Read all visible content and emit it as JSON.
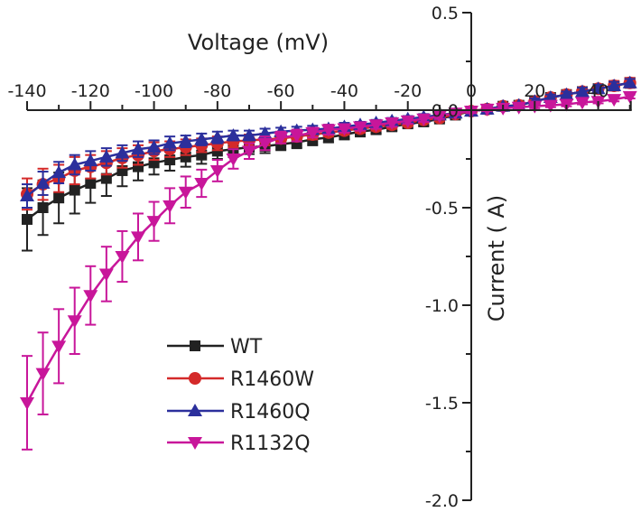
{
  "chart_data": {
    "type": "line",
    "title": "",
    "xlabel": "Voltage (mV)",
    "ylabel": "Current ( A)",
    "xlim": [
      -140,
      50
    ],
    "ylim": [
      -2.0,
      0.5
    ],
    "xticks": [
      -140,
      -120,
      -100,
      -80,
      -60,
      -40,
      -20,
      0,
      20,
      40
    ],
    "xtick_labels": [
      "-140",
      "-120",
      "-100",
      "-80",
      "-60",
      "-40",
      "-20",
      "0",
      "20",
      "40"
    ],
    "yticks": [
      0.5,
      0.0,
      -0.5,
      -1.0,
      -1.5,
      -2.0
    ],
    "ytick_labels": [
      "0.5",
      "0.0",
      "-0.5",
      "-1.0",
      "-1.5",
      "-2.0"
    ],
    "grid": false,
    "legend_position": "lower-left",
    "x": [
      -140,
      -135,
      -130,
      -125,
      -120,
      -115,
      -110,
      -105,
      -100,
      -95,
      -90,
      -85,
      -80,
      -75,
      -70,
      -65,
      -60,
      -55,
      -50,
      -45,
      -40,
      -35,
      -30,
      -25,
      -20,
      -15,
      -10,
      -5,
      0,
      5,
      10,
      15,
      20,
      25,
      30,
      35,
      40,
      45,
      50
    ],
    "series": [
      {
        "name": "WT",
        "color": "#222222",
        "marker": "square",
        "values": [
          -0.56,
          -0.5,
          -0.45,
          -0.41,
          -0.375,
          -0.35,
          -0.31,
          -0.29,
          -0.27,
          -0.255,
          -0.24,
          -0.23,
          -0.21,
          -0.2,
          -0.19,
          -0.185,
          -0.175,
          -0.165,
          -0.15,
          -0.14,
          -0.125,
          -0.11,
          -0.1,
          -0.085,
          -0.07,
          -0.06,
          -0.045,
          -0.025,
          -0.005,
          0.005,
          0.02,
          0.025,
          0.045,
          0.065,
          0.08,
          0.095,
          0.11,
          0.125,
          0.14
        ],
        "errors": [
          0.16,
          0.14,
          0.13,
          0.12,
          0.1,
          0.09,
          0.08,
          0.07,
          0.06,
          0.055,
          0.05,
          0.045,
          0.04,
          0.04,
          0.035,
          0.035,
          0.03,
          0.03,
          0.03,
          0.025,
          0.025,
          0.025,
          0.02,
          0.02,
          0.02,
          0.02,
          0.015,
          0.015,
          0.01,
          0.01,
          0.01,
          0.015,
          0.015,
          0.015,
          0.02,
          0.02,
          0.02,
          0.02,
          0.025
        ]
      },
      {
        "name": "R1460W",
        "color": "#d42a2a",
        "marker": "circle",
        "values": [
          -0.43,
          -0.38,
          -0.35,
          -0.31,
          -0.29,
          -0.27,
          -0.245,
          -0.23,
          -0.21,
          -0.2,
          -0.19,
          -0.18,
          -0.17,
          -0.16,
          -0.155,
          -0.15,
          -0.145,
          -0.135,
          -0.125,
          -0.115,
          -0.105,
          -0.095,
          -0.085,
          -0.075,
          -0.065,
          -0.05,
          -0.04,
          -0.02,
          -0.005,
          0.005,
          0.02,
          0.025,
          0.045,
          0.065,
          0.08,
          0.095,
          0.11,
          0.125,
          0.14
        ],
        "errors": [
          0.08,
          0.08,
          0.07,
          0.07,
          0.06,
          0.06,
          0.05,
          0.05,
          0.045,
          0.04,
          0.04,
          0.035,
          0.035,
          0.03,
          0.03,
          0.03,
          0.025,
          0.025,
          0.025,
          0.02,
          0.02,
          0.02,
          0.02,
          0.02,
          0.015,
          0.015,
          0.015,
          0.01,
          0.01,
          0.01,
          0.01,
          0.015,
          0.015,
          0.015,
          0.02,
          0.02,
          0.02,
          0.025,
          0.025
        ]
      },
      {
        "name": "R1460Q",
        "color": "#2b2f9c",
        "marker": "triangle-up",
        "values": [
          -0.44,
          -0.375,
          -0.32,
          -0.28,
          -0.26,
          -0.24,
          -0.22,
          -0.2,
          -0.19,
          -0.17,
          -0.16,
          -0.15,
          -0.14,
          -0.13,
          -0.13,
          -0.12,
          -0.11,
          -0.105,
          -0.1,
          -0.095,
          -0.085,
          -0.075,
          -0.065,
          -0.055,
          -0.045,
          -0.035,
          -0.025,
          -0.015,
          -0.005,
          0.005,
          0.02,
          0.025,
          0.045,
          0.065,
          0.08,
          0.095,
          0.11,
          0.125,
          0.14
        ],
        "errors": [
          0.06,
          0.06,
          0.055,
          0.05,
          0.05,
          0.045,
          0.04,
          0.04,
          0.035,
          0.035,
          0.03,
          0.03,
          0.03,
          0.025,
          0.025,
          0.025,
          0.02,
          0.02,
          0.02,
          0.02,
          0.02,
          0.015,
          0.015,
          0.015,
          0.015,
          0.015,
          0.01,
          0.01,
          0.01,
          0.01,
          0.01,
          0.01,
          0.015,
          0.015,
          0.015,
          0.02,
          0.02,
          0.02,
          0.02
        ]
      },
      {
        "name": "R1132Q",
        "color": "#c8169a",
        "marker": "triangle-down",
        "values": [
          -1.5,
          -1.35,
          -1.21,
          -1.08,
          -0.95,
          -0.84,
          -0.75,
          -0.65,
          -0.57,
          -0.49,
          -0.42,
          -0.375,
          -0.31,
          -0.25,
          -0.21,
          -0.17,
          -0.14,
          -0.13,
          -0.115,
          -0.1,
          -0.095,
          -0.085,
          -0.075,
          -0.065,
          -0.055,
          -0.045,
          -0.03,
          -0.015,
          -0.005,
          0.005,
          0.01,
          0.015,
          0.02,
          0.025,
          0.03,
          0.04,
          0.045,
          0.055,
          0.07
        ],
        "errors": [
          0.24,
          0.21,
          0.19,
          0.17,
          0.15,
          0.14,
          0.13,
          0.12,
          0.1,
          0.09,
          0.08,
          0.07,
          0.055,
          0.05,
          0.04,
          0.035,
          0.03,
          0.03,
          0.025,
          0.025,
          0.02,
          0.02,
          0.02,
          0.02,
          0.015,
          0.015,
          0.015,
          0.01,
          0.01,
          0.01,
          0.01,
          0.01,
          0.01,
          0.01,
          0.01,
          0.01,
          0.01,
          0.01,
          0.01
        ]
      }
    ]
  }
}
